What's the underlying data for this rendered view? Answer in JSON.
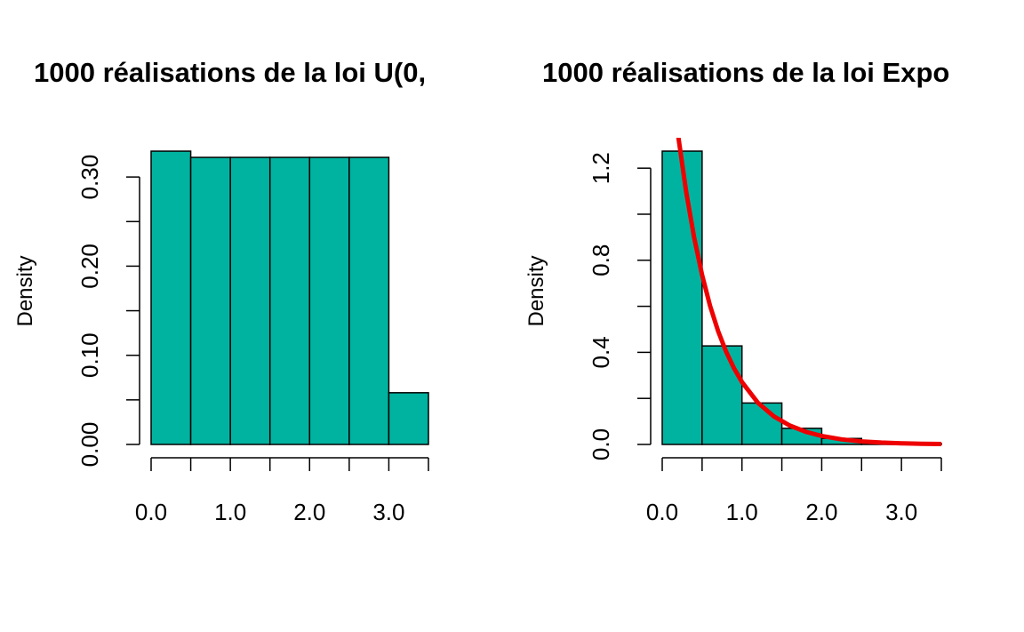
{
  "chart_data": [
    {
      "type": "histogram",
      "title": "1000 réalisations de la loi U(0,",
      "ylabel": "Density",
      "color": "#00b3a0",
      "bins": [
        0,
        0.5,
        1.0,
        1.5,
        2.0,
        2.5,
        3.0,
        3.5
      ],
      "values": [
        0.329,
        0.322,
        0.322,
        0.322,
        0.322,
        0.322,
        0.058
      ],
      "xlim": [
        0,
        3.5
      ],
      "ylim": [
        0,
        0.344
      ],
      "xticks": [
        {
          "value": 0,
          "label": "0.0"
        },
        {
          "value": 0.5,
          "label": null
        },
        {
          "value": 1,
          "label": "1.0"
        },
        {
          "value": 1.5,
          "label": null
        },
        {
          "value": 2,
          "label": "2.0"
        },
        {
          "value": 2.5,
          "label": null
        },
        {
          "value": 3,
          "label": "3.0"
        },
        {
          "value": 3.5,
          "label": null
        }
      ],
      "yticks": [
        {
          "value": 0,
          "label": "0.00"
        },
        {
          "value": 0.05,
          "label": null
        },
        {
          "value": 0.1,
          "label": "0.10"
        },
        {
          "value": 0.15,
          "label": null
        },
        {
          "value": 0.2,
          "label": "0.20"
        },
        {
          "value": 0.25,
          "label": null
        },
        {
          "value": 0.3,
          "label": "0.30"
        }
      ]
    },
    {
      "type": "histogram",
      "title": "1000 réalisations de la loi Expo",
      "ylabel": "Density",
      "color": "#00b3a0",
      "bins": [
        0,
        0.5,
        1.0,
        1.5,
        2.0,
        2.5,
        3.0,
        3.5
      ],
      "values": [
        1.274,
        0.428,
        0.18,
        0.07,
        0.026,
        0.01,
        0.004
      ],
      "xlim": [
        0,
        3.5
      ],
      "ylim": [
        0,
        1.332
      ],
      "xticks": [
        {
          "value": 0,
          "label": "0.0"
        },
        {
          "value": 0.5,
          "label": null
        },
        {
          "value": 1,
          "label": "1.0"
        },
        {
          "value": 1.5,
          "label": null
        },
        {
          "value": 2,
          "label": "2.0"
        },
        {
          "value": 2.5,
          "label": null
        },
        {
          "value": 3,
          "label": "3.0"
        },
        {
          "value": 3.5,
          "label": null
        }
      ],
      "yticks": [
        {
          "value": 0,
          "label": "0.0"
        },
        {
          "value": 0.2,
          "label": null
        },
        {
          "value": 0.4,
          "label": "0.4"
        },
        {
          "value": 0.6,
          "label": null
        },
        {
          "value": 0.8,
          "label": "0.8"
        },
        {
          "value": 1.0,
          "label": null
        },
        {
          "value": 1.2,
          "label": "1.2"
        }
      ],
      "curve": {
        "color": "#ee0000",
        "x": [
          0.2,
          0.3,
          0.4,
          0.5,
          0.6,
          0.7,
          0.8,
          0.9,
          1.0,
          1.2,
          1.4,
          1.6,
          1.8,
          2.0,
          2.25,
          2.5,
          2.75,
          3.0,
          3.25,
          3.5
        ],
        "values": [
          1.341,
          1.098,
          0.899,
          0.736,
          0.602,
          0.493,
          0.404,
          0.331,
          0.271,
          0.181,
          0.122,
          0.082,
          0.055,
          0.037,
          0.022,
          0.013,
          0.008,
          0.005,
          0.003,
          0.002
        ]
      }
    }
  ]
}
